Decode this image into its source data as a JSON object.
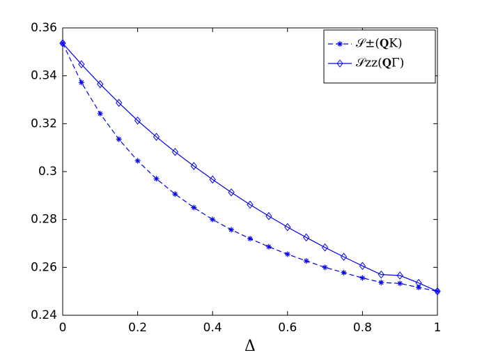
{
  "chart_data": {
    "type": "line",
    "xlabel": "Δ",
    "x": [
      0,
      0.05,
      0.1,
      0.15,
      0.2,
      0.25,
      0.3,
      0.35,
      0.4,
      0.45,
      0.5,
      0.55,
      0.6,
      0.65,
      0.7,
      0.75,
      0.8,
      0.85,
      0.9,
      0.95,
      1
    ],
    "series": [
      {
        "name": "𝒮±(𝐐K)",
        "color": "#0000ee",
        "dash": true,
        "marker": "asterisk",
        "values": [
          0.3536,
          0.3372,
          0.3242,
          0.3135,
          0.3045,
          0.297,
          0.2906,
          0.285,
          0.28,
          0.2757,
          0.272,
          0.2686,
          0.2655,
          0.2627,
          0.26,
          0.2578,
          0.2556,
          0.2537,
          0.2533,
          0.2516,
          0.25
        ]
      },
      {
        "name": "𝒮zz(𝐐Γ)",
        "color": "#0000ee",
        "dash": false,
        "marker": "diamond",
        "values": [
          0.3536,
          0.3448,
          0.3365,
          0.3287,
          0.3213,
          0.3145,
          0.3082,
          0.3023,
          0.2967,
          0.2913,
          0.2862,
          0.2814,
          0.2768,
          0.2725,
          0.2683,
          0.2644,
          0.2606,
          0.257,
          0.2566,
          0.2535,
          0.25
        ]
      }
    ],
    "xlim": [
      0,
      1
    ],
    "xticks": [
      0,
      0.2,
      0.4,
      0.6,
      0.8,
      1
    ],
    "ylim": [
      0.24,
      0.36
    ],
    "yticks": [
      0.24,
      0.26,
      0.28,
      0.3,
      0.32,
      0.34,
      0.36
    ],
    "legend": "upper right"
  }
}
